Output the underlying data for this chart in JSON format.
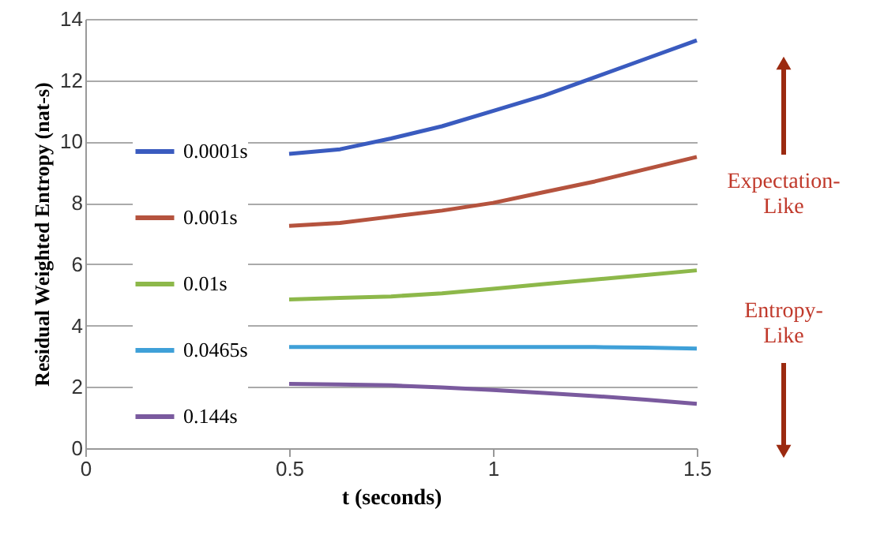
{
  "chart_data": {
    "type": "line",
    "xlabel": "t (seconds)",
    "ylabel": "Residual Weighted Entropy (nat-s)",
    "x": [
      0.5,
      0.625,
      0.75,
      0.875,
      1,
      1.125,
      1.25,
      1.375,
      1.5
    ],
    "series": [
      {
        "name": "0.0001s",
        "color": "#3a5bbf",
        "values": [
          9.6,
          9.75,
          10.1,
          10.5,
          11.0,
          11.5,
          12.1,
          12.7,
          13.3
        ]
      },
      {
        "name": "0.001s",
        "color": "#b5533e",
        "values": [
          7.25,
          7.35,
          7.55,
          7.75,
          8.0,
          8.35,
          8.7,
          9.1,
          9.5
        ]
      },
      {
        "name": "0.01s",
        "color": "#8db84a",
        "values": [
          4.85,
          4.9,
          4.95,
          5.05,
          5.2,
          5.35,
          5.5,
          5.65,
          5.8
        ]
      },
      {
        "name": "0.0465s",
        "color": "#3fa0d8",
        "values": [
          3.3,
          3.3,
          3.3,
          3.3,
          3.3,
          3.3,
          3.3,
          3.28,
          3.25
        ]
      },
      {
        "name": "0.144s",
        "color": "#7a5a9e",
        "values": [
          2.1,
          2.08,
          2.05,
          1.98,
          1.9,
          1.8,
          1.7,
          1.58,
          1.45
        ]
      }
    ],
    "xlim": [
      0,
      1.5
    ],
    "xticks": [
      0,
      0.5,
      1,
      1.5
    ],
    "ylim": [
      0,
      14
    ],
    "yticks": [
      0,
      2,
      4,
      6,
      8,
      10,
      12,
      14
    ],
    "grid": "y",
    "legend": "left",
    "marker": "none",
    "line_style": "solid",
    "annotations": [
      "Expectation-\nLike",
      "Entropy-\nLike"
    ]
  }
}
